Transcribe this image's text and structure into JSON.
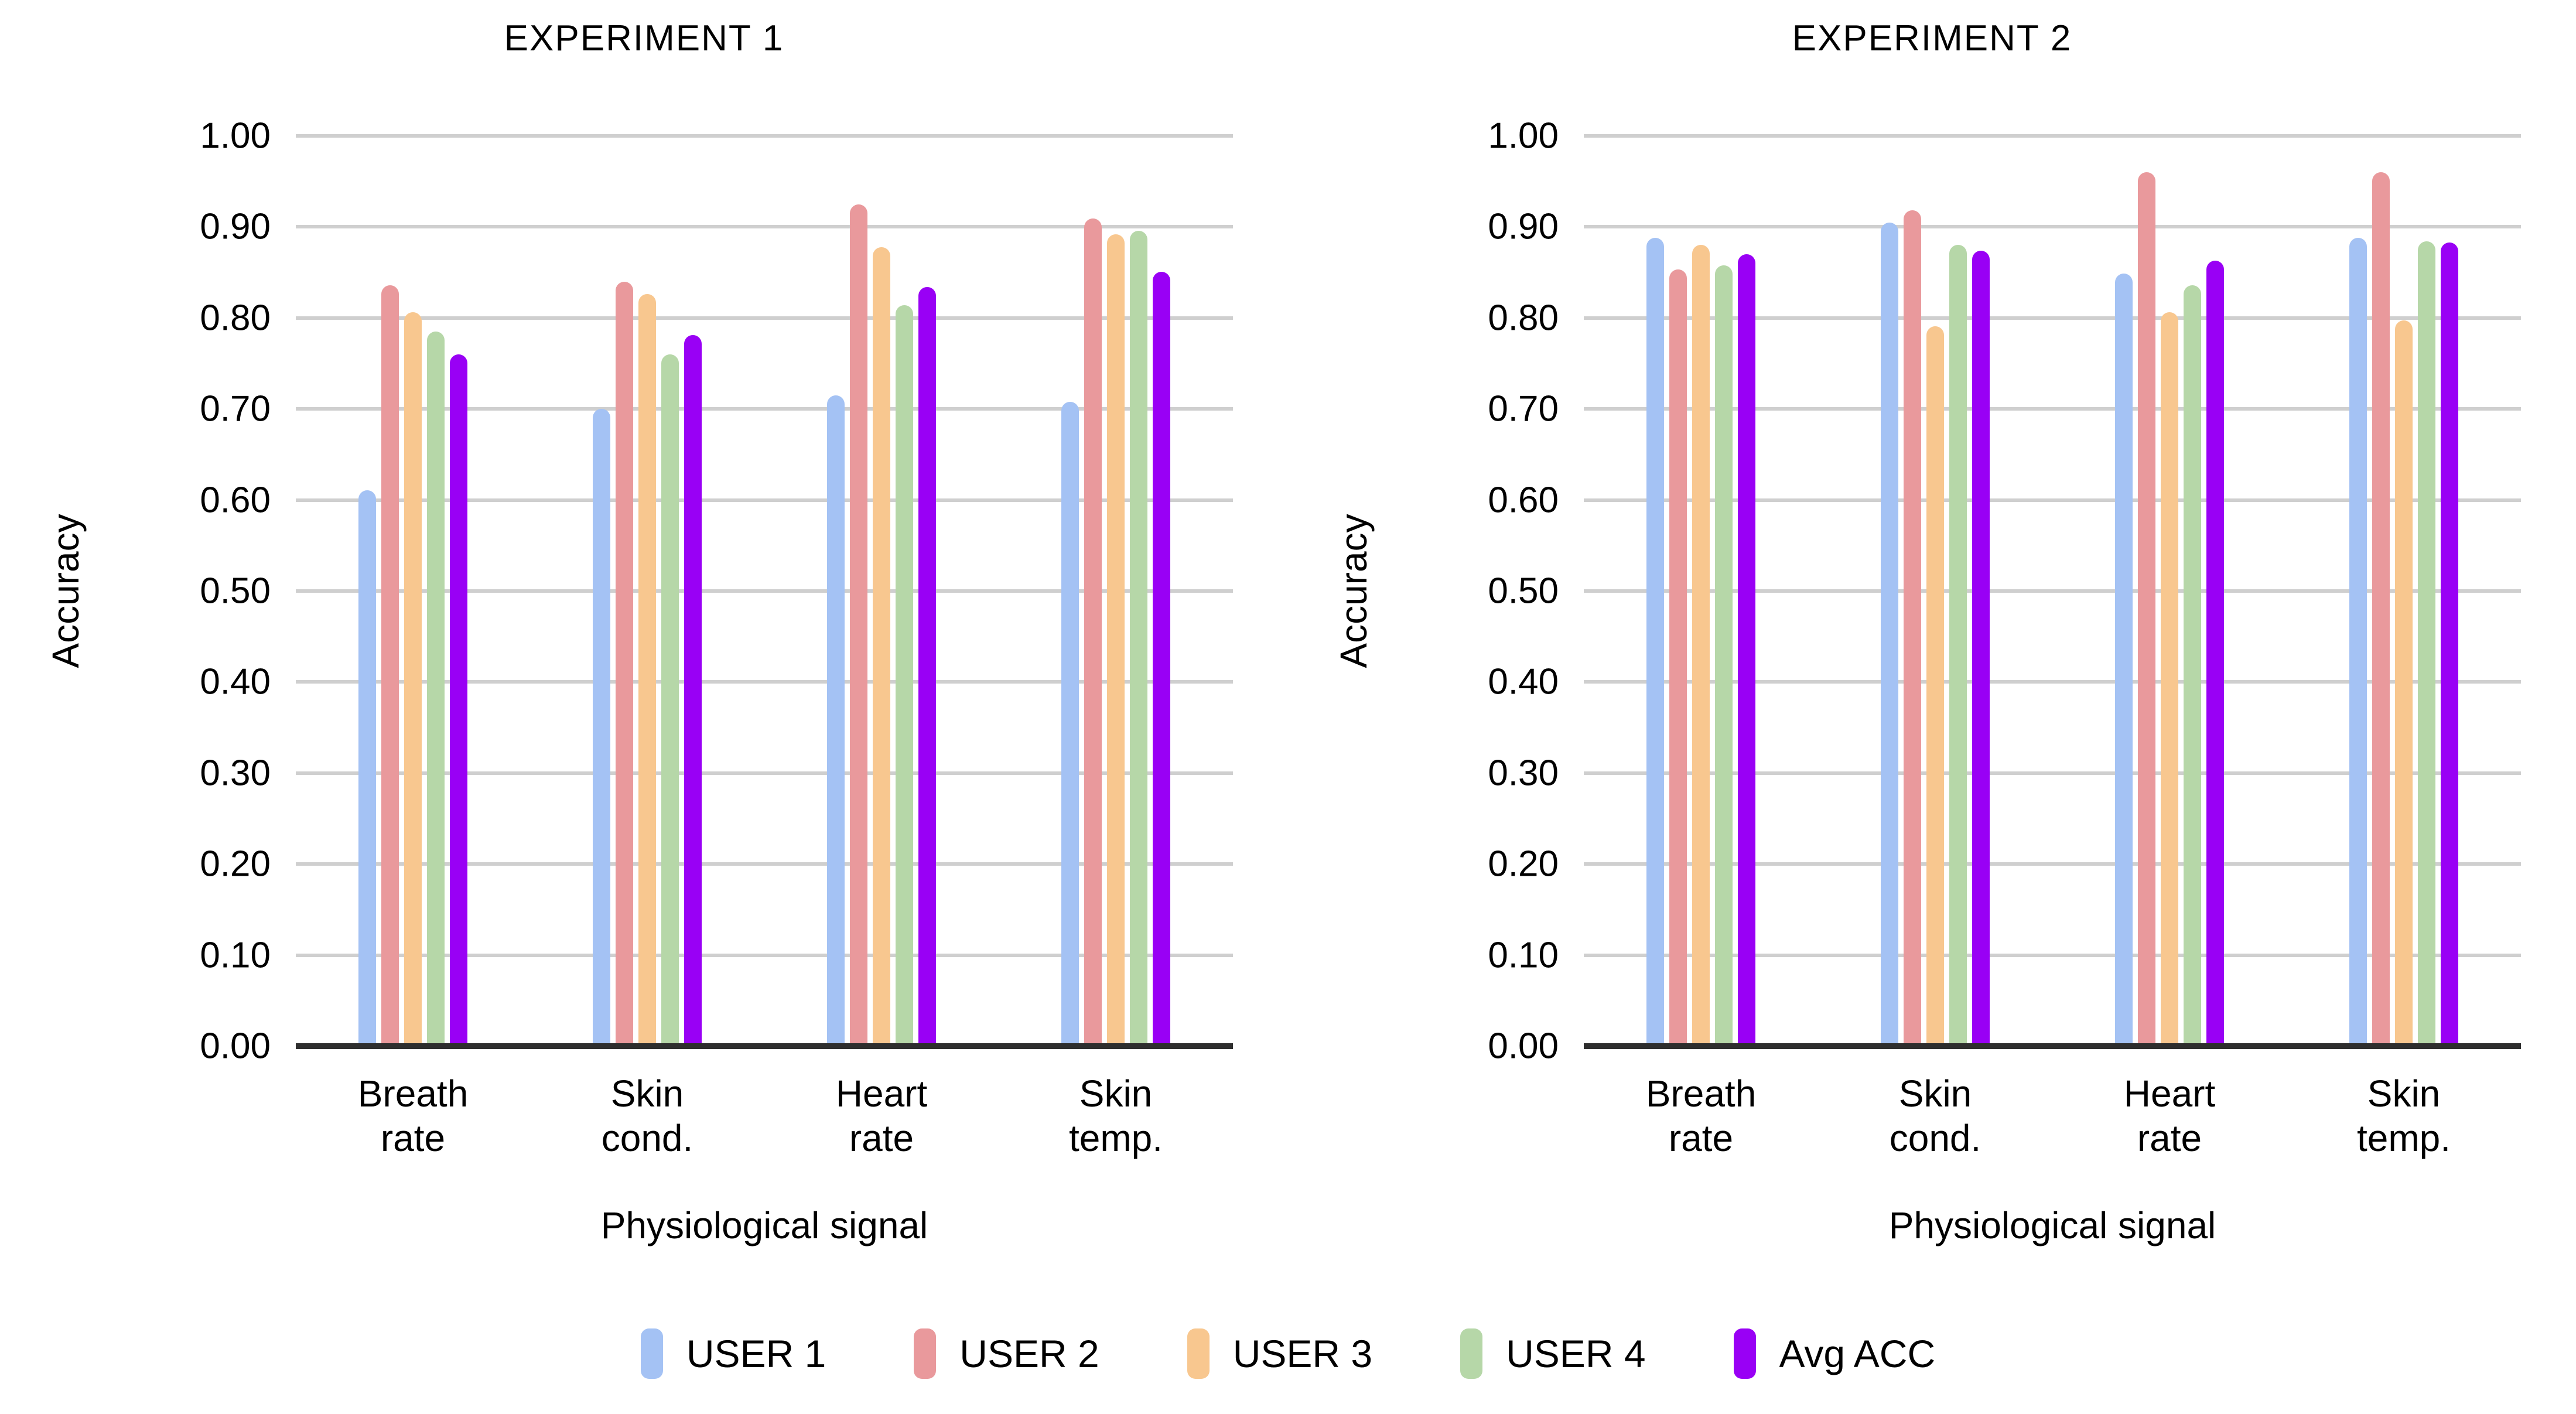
{
  "figure": {
    "kind": "grouped-bar-figure",
    "background": "#ffffff"
  },
  "colors": {
    "user1": "#a4c2f4",
    "user2": "#e9999c",
    "user3": "#f8c78f",
    "user4": "#b6d7a8",
    "avg": "#9900f5",
    "gridline": "#cfcfcf",
    "axis_line": "#2e2e2e",
    "text": "#000000"
  },
  "chart_data": [
    {
      "type": "bar",
      "title": "EXPERIMENT 1",
      "xlabel": "Physiological signal",
      "ylabel": "Accuracy",
      "ylim": [
        0,
        1
      ],
      "grid": true,
      "legend_position": "bottom-center",
      "y_ticks": [
        "0.00",
        "0.10",
        "0.20",
        "0.30",
        "0.40",
        "0.50",
        "0.60",
        "0.70",
        "0.80",
        "0.90",
        "1.00"
      ],
      "categories": [
        "Breath\nrate",
        "Skin\ncond.",
        "Heart\nrate",
        "Skin\ntemp."
      ],
      "series": [
        {
          "name": "USER 1",
          "color": "#a4c2f4",
          "values": [
            0.611,
            0.7,
            0.715,
            0.708
          ]
        },
        {
          "name": "USER 2",
          "color": "#e9999c",
          "values": [
            0.836,
            0.84,
            0.925,
            0.909
          ]
        },
        {
          "name": "USER 3",
          "color": "#f8c78f",
          "values": [
            0.806,
            0.826,
            0.878,
            0.892
          ]
        },
        {
          "name": "USER 4",
          "color": "#b6d7a8",
          "values": [
            0.785,
            0.76,
            0.814,
            0.896
          ]
        },
        {
          "name": "Avg ACC",
          "color": "#9900f5",
          "values": [
            0.76,
            0.781,
            0.834,
            0.851
          ]
        }
      ]
    },
    {
      "type": "bar",
      "title": "EXPERIMENT 2",
      "xlabel": "Physiological signal",
      "ylabel": "Accuracy",
      "ylim": [
        0,
        1
      ],
      "grid": true,
      "legend_position": "bottom-center",
      "y_ticks": [
        "0.00",
        "0.10",
        "0.20",
        "0.30",
        "0.40",
        "0.50",
        "0.60",
        "0.70",
        "0.80",
        "0.90",
        "1.00"
      ],
      "categories": [
        "Breath\nrate",
        "Skin\ncond.",
        "Heart\nrate",
        "Skin\ntemp."
      ],
      "series": [
        {
          "name": "USER 1",
          "color": "#a4c2f4",
          "values": [
            0.888,
            0.905,
            0.849,
            0.888
          ]
        },
        {
          "name": "USER 2",
          "color": "#e9999c",
          "values": [
            0.853,
            0.918,
            0.96,
            0.96
          ]
        },
        {
          "name": "USER 3",
          "color": "#f8c78f",
          "values": [
            0.88,
            0.791,
            0.806,
            0.797
          ]
        },
        {
          "name": "USER 4",
          "color": "#b6d7a8",
          "values": [
            0.858,
            0.88,
            0.836,
            0.884
          ]
        },
        {
          "name": "Avg ACC",
          "color": "#9900f5",
          "values": [
            0.87,
            0.874,
            0.863,
            0.883
          ]
        }
      ]
    }
  ],
  "legend": {
    "items": [
      {
        "label": "USER 1",
        "color": "#a4c2f4"
      },
      {
        "label": "USER 2",
        "color": "#e9999c"
      },
      {
        "label": "USER 3",
        "color": "#f8c78f"
      },
      {
        "label": "USER 4",
        "color": "#b6d7a8"
      },
      {
        "label": "Avg ACC",
        "color": "#9900f5"
      }
    ]
  }
}
